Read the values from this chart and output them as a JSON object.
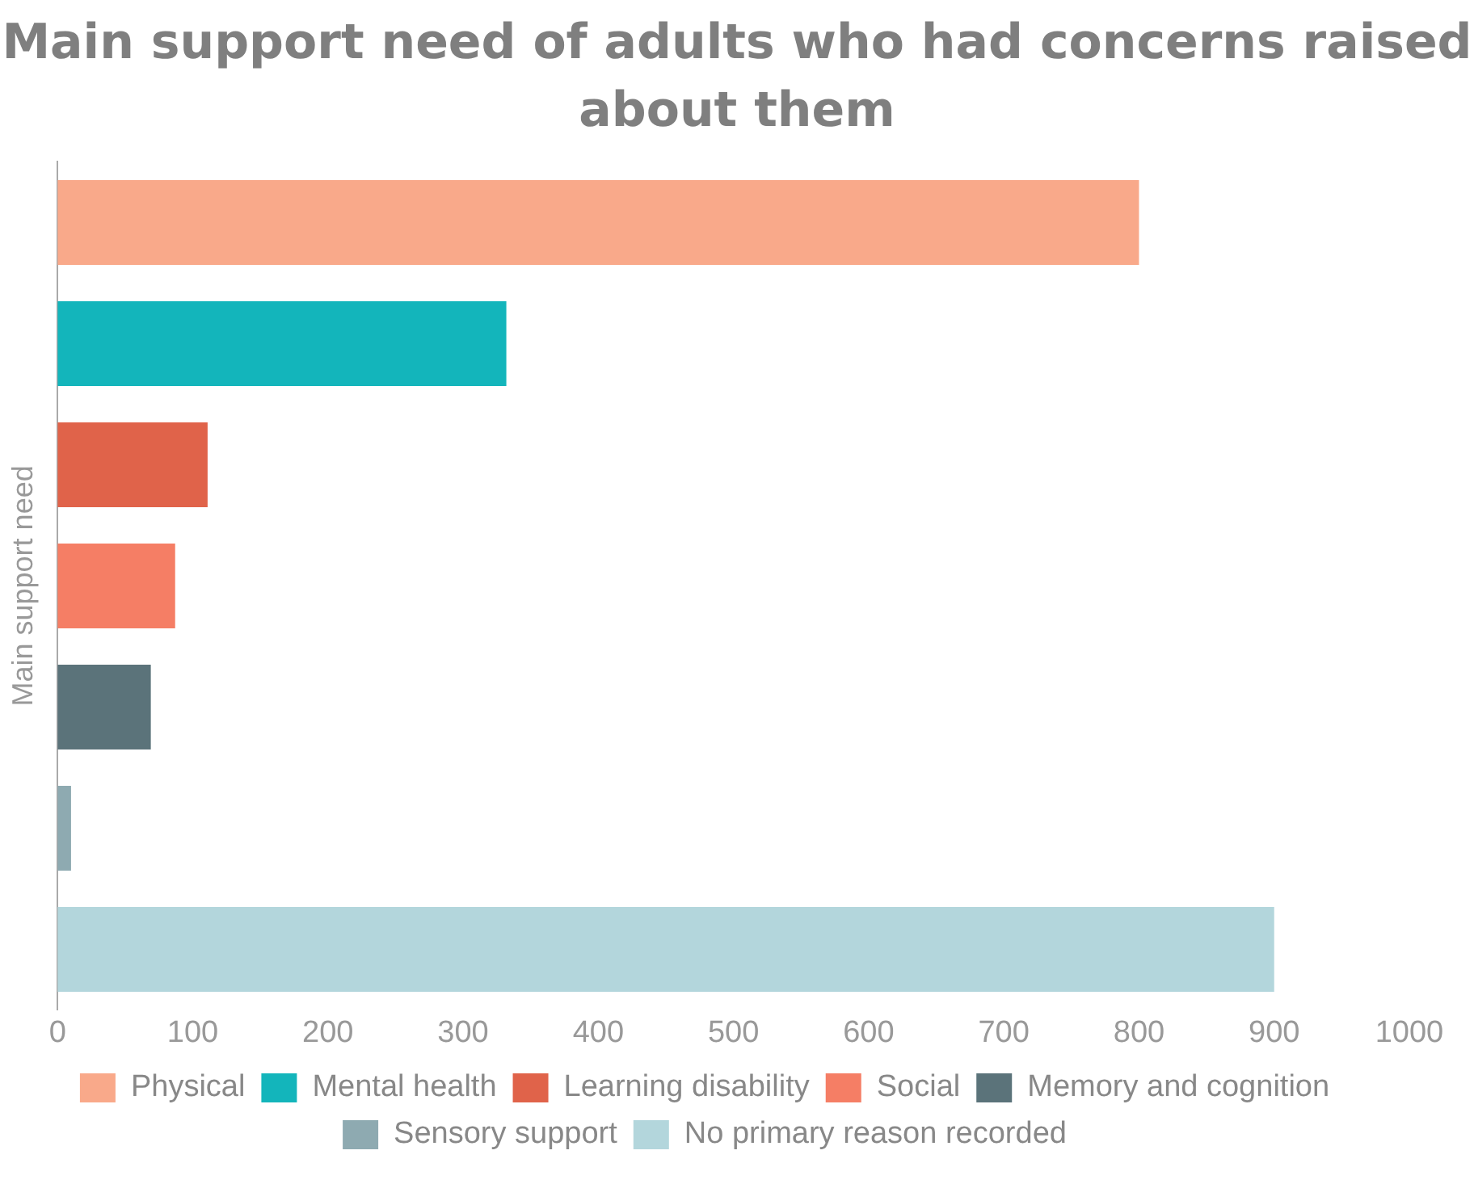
{
  "chart_data": {
    "type": "bar",
    "title": "Main support need of adults who had concerns raised about them",
    "ylabel": "Main support need",
    "orientation": "horizontal",
    "categories": [
      null,
      null,
      null,
      null,
      null,
      null,
      null
    ],
    "series": [
      {
        "name": "Physical",
        "color": "#f9a98a",
        "values": [
          800,
          null,
          null,
          null,
          null,
          null,
          null
        ]
      },
      {
        "name": "Mental health",
        "color": "#13b5bb",
        "values": [
          null,
          332,
          null,
          null,
          null,
          null,
          null
        ]
      },
      {
        "name": "Learning disability",
        "color": "#e0634a",
        "values": [
          null,
          null,
          111,
          null,
          null,
          null,
          null
        ]
      },
      {
        "name": "Social",
        "color": "#f57e65",
        "values": [
          null,
          null,
          null,
          87,
          null,
          null,
          null
        ]
      },
      {
        "name": "Memory and cognition",
        "color": "#5b737a",
        "values": [
          null,
          null,
          null,
          null,
          69,
          null,
          null
        ]
      },
      {
        "name": "Sensory support",
        "color": "#8eaab1",
        "values": [
          null,
          null,
          null,
          null,
          null,
          10,
          null
        ]
      },
      {
        "name": "No primary reason recorded",
        "color": "#b3d6dc",
        "values": [
          null,
          null,
          null,
          null,
          null,
          null,
          900
        ]
      }
    ],
    "xlim": [
      0,
      1000
    ],
    "xticks": [
      0,
      100,
      200,
      300,
      400,
      500,
      600,
      700,
      800,
      900,
      1000
    ],
    "grid": false,
    "legend": "bottom"
  }
}
